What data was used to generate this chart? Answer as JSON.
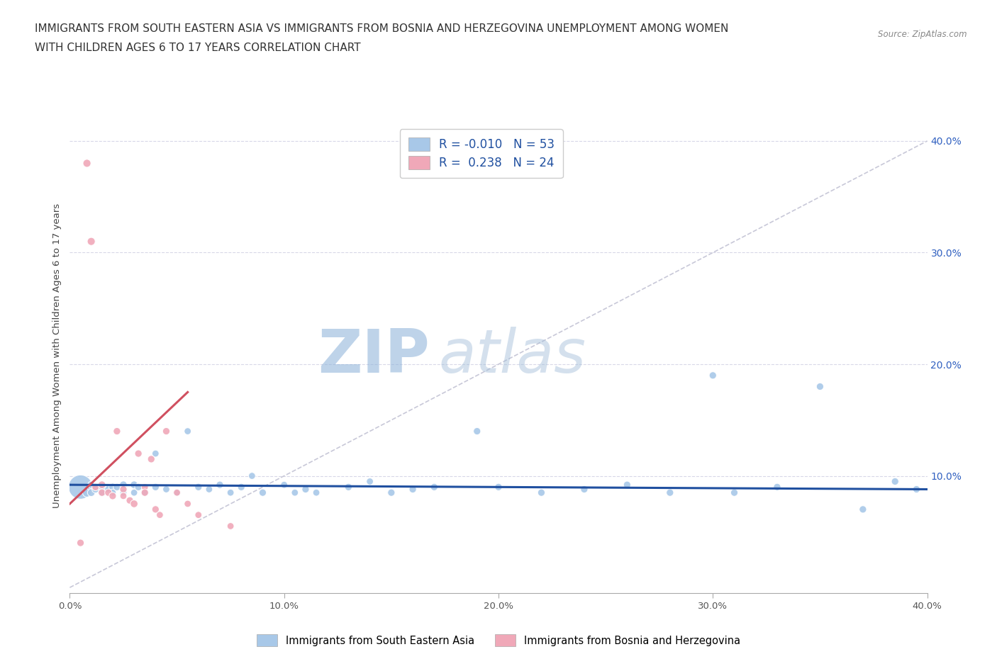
{
  "title_line1": "IMMIGRANTS FROM SOUTH EASTERN ASIA VS IMMIGRANTS FROM BOSNIA AND HERZEGOVINA UNEMPLOYMENT AMONG WOMEN",
  "title_line2": "WITH CHILDREN AGES 6 TO 17 YEARS CORRELATION CHART",
  "source": "Source: ZipAtlas.com",
  "ylabel": "Unemployment Among Women with Children Ages 6 to 17 years",
  "xlim": [
    0.0,
    0.4
  ],
  "ylim": [
    -0.005,
    0.42
  ],
  "xticks": [
    0.0,
    0.1,
    0.2,
    0.3,
    0.4
  ],
  "yticks_right": [
    0.1,
    0.2,
    0.3,
    0.4
  ],
  "xtick_labels": [
    "0.0%",
    "10.0%",
    "20.0%",
    "30.0%",
    "40.0%"
  ],
  "ytick_labels_right": [
    "10.0%",
    "20.0%",
    "30.0%",
    "40.0%"
  ],
  "background_color": "#ffffff",
  "watermark_zip": "ZIP",
  "watermark_atlas": "atlas",
  "legend_R1": "-0.010",
  "legend_N1": "53",
  "legend_R2": "0.238",
  "legend_N2": "24",
  "blue_color": "#a8c8e8",
  "pink_color": "#f0a8b8",
  "blue_line_color": "#2050a0",
  "pink_line_color": "#d05060",
  "diagonal_color": "#c8c8d8",
  "grid_color": "#d8d8e8",
  "blue_points_x": [
    0.005,
    0.008,
    0.01,
    0.01,
    0.01,
    0.012,
    0.015,
    0.015,
    0.015,
    0.018,
    0.02,
    0.02,
    0.022,
    0.025,
    0.025,
    0.03,
    0.03,
    0.032,
    0.035,
    0.04,
    0.04,
    0.045,
    0.05,
    0.055,
    0.06,
    0.065,
    0.07,
    0.075,
    0.08,
    0.085,
    0.09,
    0.1,
    0.105,
    0.11,
    0.115,
    0.13,
    0.14,
    0.15,
    0.16,
    0.17,
    0.19,
    0.2,
    0.22,
    0.24,
    0.26,
    0.28,
    0.3,
    0.31,
    0.33,
    0.35,
    0.37,
    0.385,
    0.395
  ],
  "blue_points_y": [
    0.09,
    0.085,
    0.09,
    0.085,
    0.092,
    0.088,
    0.09,
    0.085,
    0.09,
    0.088,
    0.09,
    0.085,
    0.09,
    0.092,
    0.085,
    0.092,
    0.085,
    0.09,
    0.085,
    0.09,
    0.12,
    0.088,
    0.085,
    0.14,
    0.09,
    0.088,
    0.092,
    0.085,
    0.09,
    0.1,
    0.085,
    0.092,
    0.085,
    0.088,
    0.085,
    0.09,
    0.095,
    0.085,
    0.088,
    0.09,
    0.14,
    0.09,
    0.085,
    0.088,
    0.092,
    0.085,
    0.19,
    0.085,
    0.09,
    0.18,
    0.07,
    0.095,
    0.088
  ],
  "blue_points_size": [
    600,
    80,
    70,
    60,
    50,
    55,
    70,
    60,
    50,
    55,
    60,
    50,
    55,
    60,
    50,
    60,
    50,
    55,
    50,
    55,
    50,
    50,
    50,
    50,
    55,
    50,
    55,
    50,
    55,
    50,
    55,
    50,
    50,
    55,
    50,
    55,
    50,
    55,
    55,
    55,
    55,
    55,
    55,
    55,
    55,
    55,
    55,
    55,
    55,
    55,
    55,
    55,
    55
  ],
  "pink_points_x": [
    0.005,
    0.008,
    0.01,
    0.012,
    0.015,
    0.015,
    0.018,
    0.02,
    0.022,
    0.025,
    0.025,
    0.028,
    0.03,
    0.032,
    0.035,
    0.035,
    0.038,
    0.04,
    0.042,
    0.045,
    0.05,
    0.055,
    0.06,
    0.075
  ],
  "pink_points_y": [
    0.04,
    0.38,
    0.31,
    0.09,
    0.092,
    0.085,
    0.085,
    0.082,
    0.14,
    0.088,
    0.082,
    0.078,
    0.075,
    0.12,
    0.09,
    0.085,
    0.115,
    0.07,
    0.065,
    0.14,
    0.085,
    0.075,
    0.065,
    0.055
  ],
  "pink_points_size": [
    55,
    65,
    65,
    55,
    60,
    55,
    55,
    55,
    55,
    55,
    50,
    55,
    60,
    55,
    50,
    55,
    55,
    55,
    50,
    55,
    50,
    50,
    50,
    50
  ],
  "blue_trend_x": [
    0.0,
    0.4
  ],
  "blue_trend_y": [
    0.092,
    0.088
  ],
  "pink_trend_x": [
    0.0,
    0.055
  ],
  "pink_trend_y": [
    0.075,
    0.175
  ]
}
